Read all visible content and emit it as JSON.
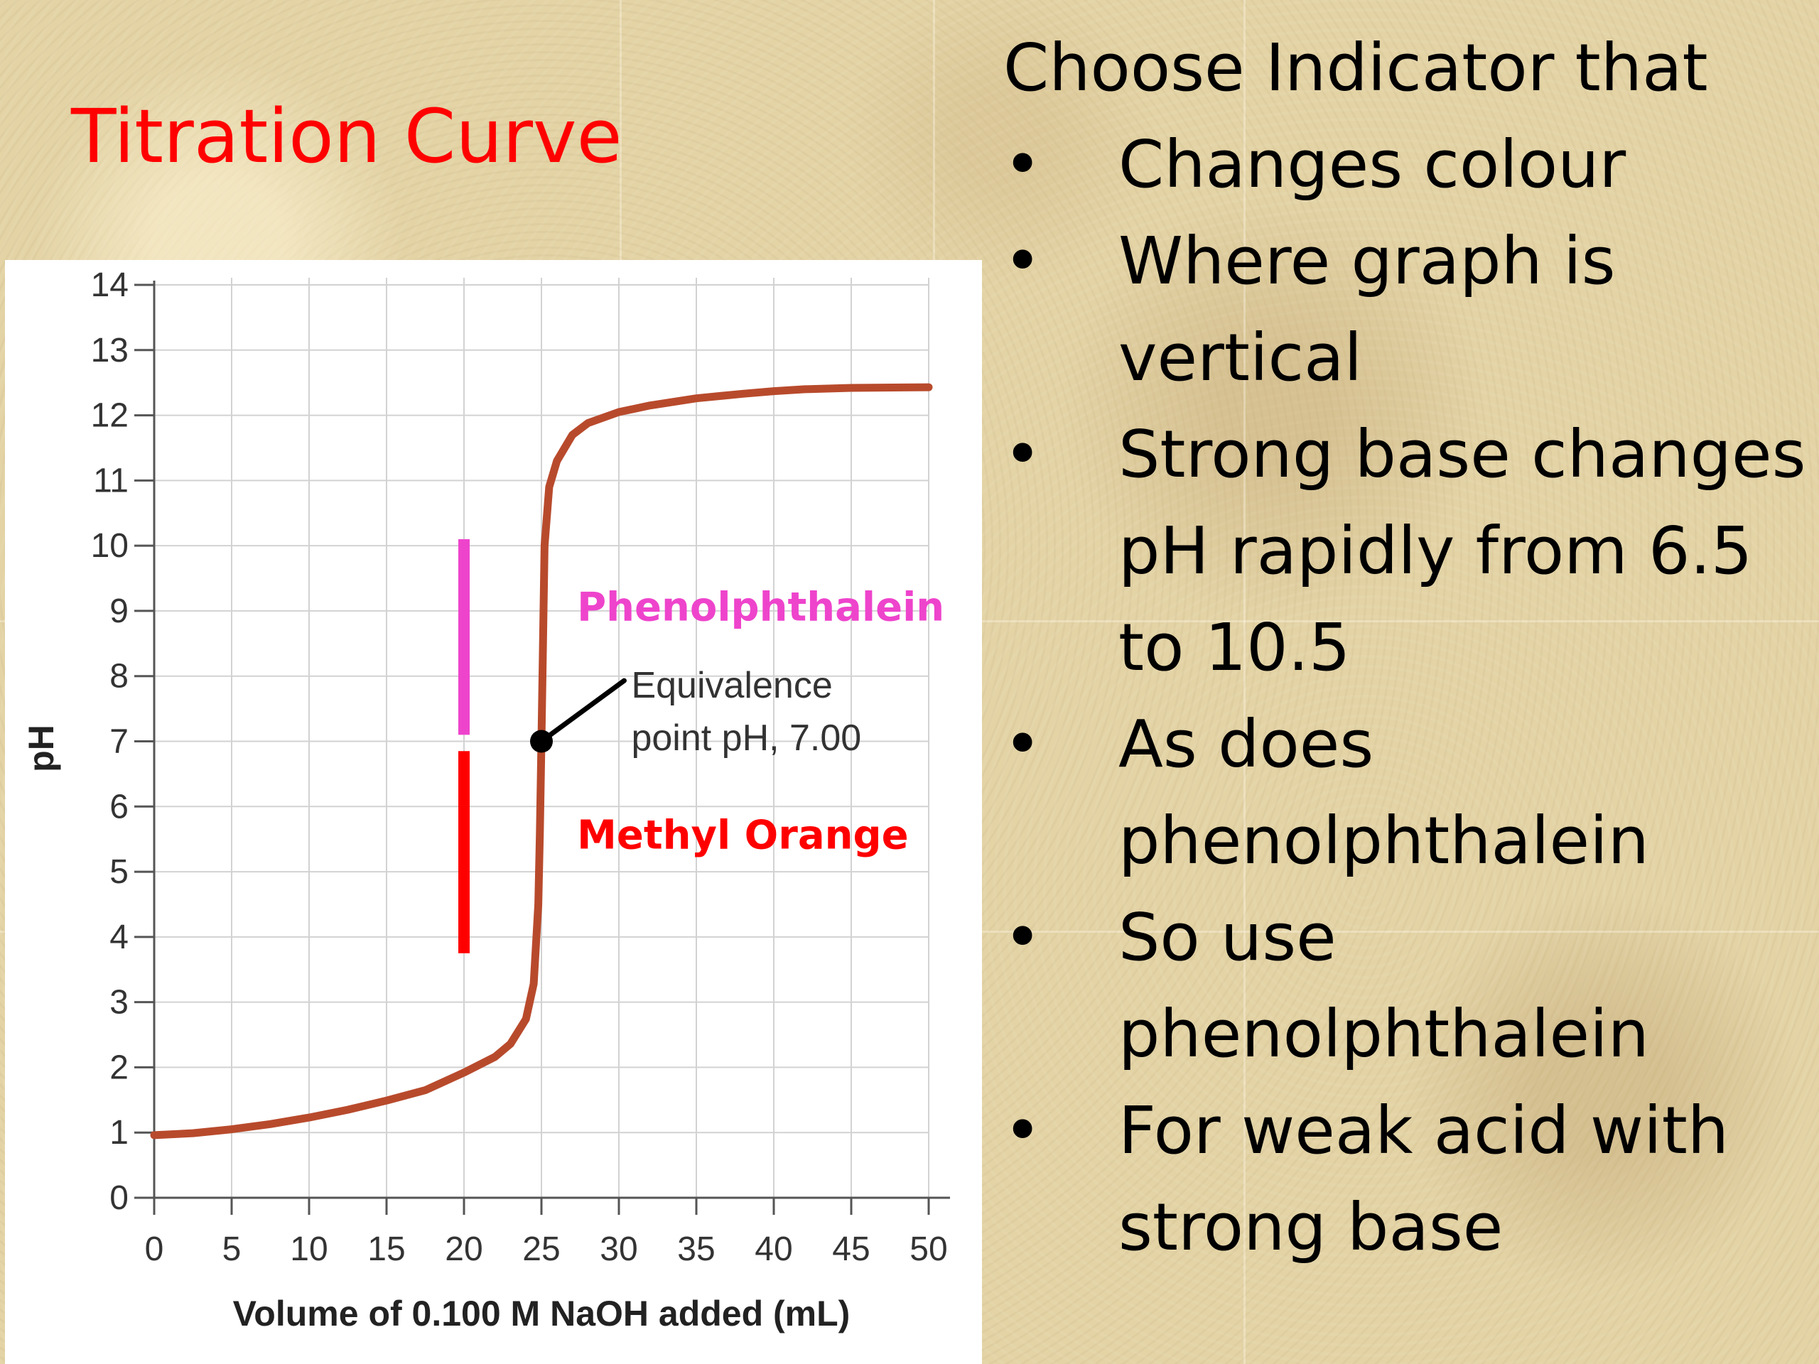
{
  "slide": {
    "title": "Titration Curve",
    "background": "#e3d3a5",
    "title_color": "#ff0000"
  },
  "bullets": {
    "heading": "Choose Indicator that",
    "bullet_glyph": "•",
    "items": [
      {
        "text": "Changes colour"
      },
      {
        "text": "Where graph is\nvertical"
      },
      {
        "text": "Strong base changes\npH rapidly from 6.5\nto 10.5"
      },
      {
        "text": "As does\nphenolphthalein"
      },
      {
        "text": "So use\nphenolphthalein"
      },
      {
        "text": "For weak acid with\nstrong base"
      }
    ]
  },
  "chart_data": {
    "type": "line",
    "title": "",
    "xlabel": "Volume of 0.100 M NaOH added (mL)",
    "ylabel": "pH",
    "xlim": [
      0,
      50
    ],
    "ylim": [
      0,
      14
    ],
    "xticks": [
      "0",
      "5",
      "10",
      "15",
      "20",
      "25",
      "30",
      "35",
      "40",
      "45",
      "50"
    ],
    "yticks": [
      "0",
      "1",
      "2",
      "3",
      "4",
      "5",
      "6",
      "7",
      "8",
      "9",
      "10",
      "11",
      "12",
      "13",
      "14"
    ],
    "grid": true,
    "series": [
      {
        "color": "#b84a2c",
        "points": [
          [
            0,
            0.96
          ],
          [
            2.5,
            0.99
          ],
          [
            5,
            1.05
          ],
          [
            7.5,
            1.13
          ],
          [
            10,
            1.23
          ],
          [
            12.5,
            1.35
          ],
          [
            15,
            1.49
          ],
          [
            17.5,
            1.65
          ],
          [
            20,
            1.92
          ],
          [
            22,
            2.16
          ],
          [
            23,
            2.36
          ],
          [
            24,
            2.74
          ],
          [
            24.5,
            3.28
          ],
          [
            24.8,
            4.5
          ],
          [
            24.9,
            5.6
          ],
          [
            25,
            7.0
          ],
          [
            25.1,
            8.5
          ],
          [
            25.2,
            10.0
          ],
          [
            25.5,
            10.9
          ],
          [
            26,
            11.3
          ],
          [
            27,
            11.7
          ],
          [
            28,
            11.88
          ],
          [
            30,
            12.05
          ],
          [
            32,
            12.15
          ],
          [
            35,
            12.26
          ],
          [
            38,
            12.33
          ],
          [
            40,
            12.37
          ],
          [
            42,
            12.4
          ],
          [
            45,
            12.42
          ],
          [
            50,
            12.43
          ]
        ]
      }
    ],
    "indicators": [
      {
        "name": "Phenolphthalein",
        "x": 20,
        "ph_low": 7.1,
        "ph_high": 10.1,
        "color": "#ee44cc",
        "label_x": 27.3,
        "label_y": 9.05
      },
      {
        "name": "Methyl Orange",
        "x": 20,
        "ph_low": 3.75,
        "ph_high": 6.85,
        "color": "#ff0000",
        "label_x": 27.3,
        "label_y": 5.55
      }
    ],
    "annotation": {
      "lines": [
        "Equivalence",
        "point pH, 7.00"
      ],
      "x": 25,
      "y": 7.0,
      "text_x": 30.8,
      "text_y": 7.8,
      "color": "#000000"
    }
  }
}
